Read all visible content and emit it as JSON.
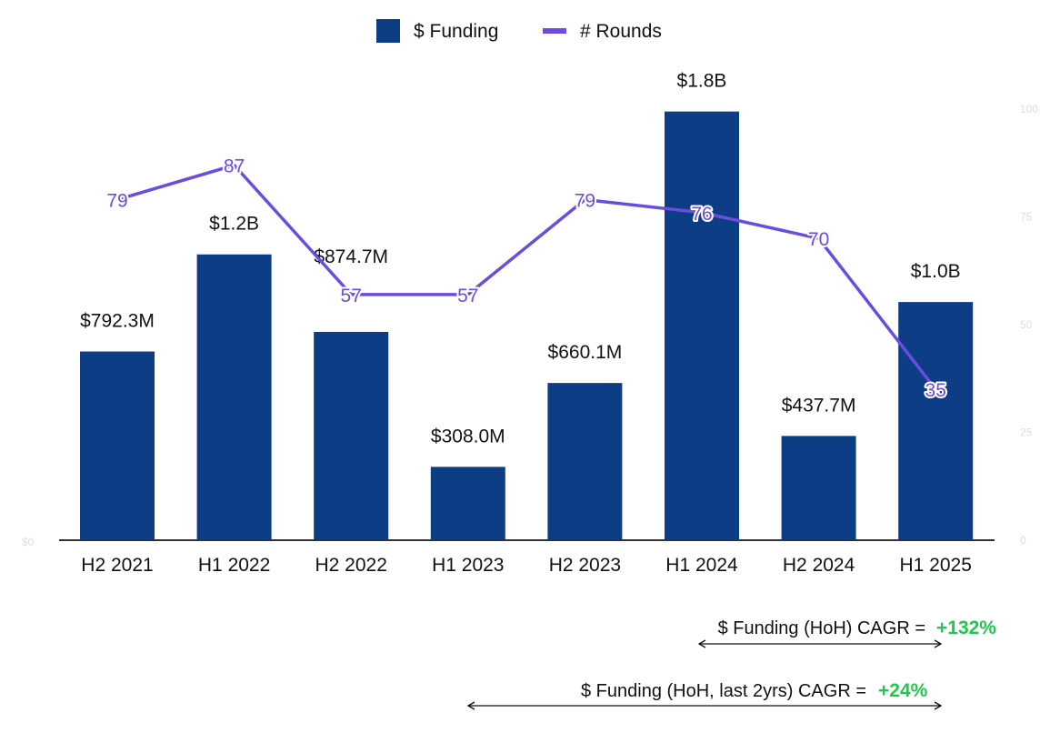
{
  "chart_data": {
    "type": "bar+line",
    "categories": [
      "H2 2021",
      "H1 2022",
      "H2 2022",
      "H1 2023",
      "H2 2023",
      "H1 2024",
      "H2 2024",
      "H1 2025"
    ],
    "series": [
      {
        "name": "$ Funding",
        "type": "bar",
        "axis": "left",
        "values_musd": [
          792.3,
          1200,
          874.7,
          308.0,
          660.1,
          1800,
          437.7,
          1000
        ],
        "labels": [
          "$792.3M",
          "$1.2B",
          "$874.7M",
          "$308.0M",
          "$660.1M",
          "$1.8B",
          "$437.7M",
          "$1.0B"
        ]
      },
      {
        "name": "# Rounds",
        "type": "line",
        "axis": "right",
        "values": [
          79,
          87,
          57,
          57,
          79,
          76,
          70,
          35
        ]
      }
    ],
    "left_axis": {
      "min": 0,
      "max_musd": 1810,
      "ticks": [
        "$0"
      ]
    },
    "right_axis": {
      "min": 0,
      "max": 100,
      "ticks": [
        "0",
        "25",
        "50",
        "75",
        "100"
      ]
    },
    "legend": {
      "position": "top",
      "entries": [
        "$ Funding",
        "# Rounds"
      ]
    },
    "colors": {
      "bar": "#0d3e85",
      "line": "#6a4de0",
      "highlight": "#1ec94c"
    },
    "annotations": [
      {
        "text": "$ Funding (HoH) CAGR =",
        "value": "+132%"
      },
      {
        "text": "$ Funding (HoH, last 2yrs) CAGR =",
        "value": "+24%"
      }
    ]
  }
}
